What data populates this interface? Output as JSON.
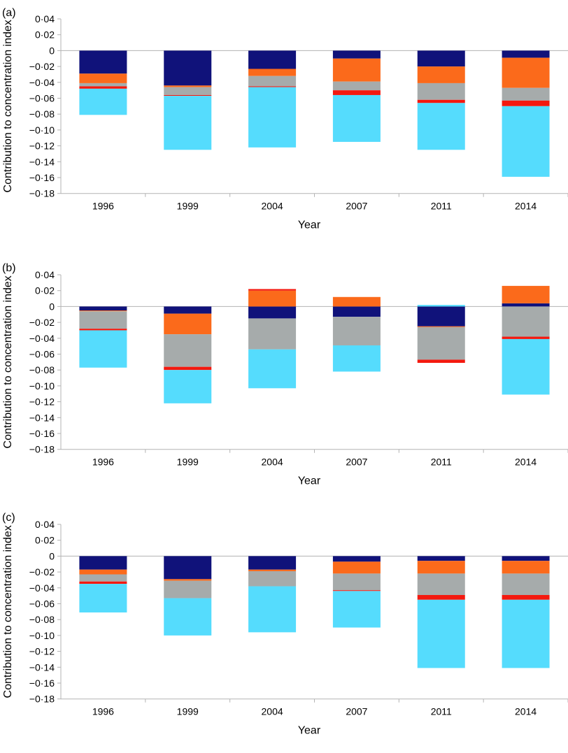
{
  "chart_data": [
    {
      "type": "bar",
      "stacked": true,
      "panel_label": "(a)",
      "xlabel": "Year",
      "ylabel": "Contribution to concentration index",
      "ylim": [
        -0.18,
        0.04
      ],
      "y_ticks": [
        0.04,
        0.02,
        0,
        -0.02,
        -0.04,
        -0.06,
        -0.08,
        -0.1,
        -0.12,
        -0.14,
        -0.16,
        -0.18
      ],
      "y_tick_labels": [
        "0·04",
        "0·02",
        "0",
        "−0·02",
        "−0·04",
        "−0·06",
        "−0·08",
        "−0·10",
        "−0·12",
        "−0·14",
        "−0·16",
        "−0·18"
      ],
      "categories": [
        "1996",
        "1999",
        "2004",
        "2007",
        "2011",
        "2014"
      ],
      "series": [
        {
          "color": "#10127a",
          "values": [
            -0.029,
            -0.044,
            -0.023,
            -0.01,
            -0.02,
            -0.009
          ]
        },
        {
          "color": "#fb6a1b",
          "values": [
            -0.012,
            -0.002,
            -0.009,
            -0.029,
            -0.021,
            -0.038
          ]
        },
        {
          "color": "#a6abab",
          "values": [
            -0.004,
            -0.01,
            -0.013,
            -0.011,
            -0.021,
            -0.016
          ]
        },
        {
          "color": "#f4190f",
          "values": [
            -0.003,
            -0.001,
            -0.001,
            -0.006,
            -0.004,
            -0.007
          ]
        },
        {
          "color": "#55dcfd",
          "values": [
            -0.033,
            -0.068,
            -0.076,
            -0.059,
            -0.059,
            -0.089
          ]
        }
      ]
    },
    {
      "type": "bar",
      "stacked": true,
      "panel_label": "(b)",
      "xlabel": "Year",
      "ylabel": "Contribution to concentration index",
      "ylim": [
        -0.18,
        0.04
      ],
      "y_ticks": [
        0.04,
        0.02,
        0,
        -0.02,
        -0.04,
        -0.06,
        -0.08,
        -0.1,
        -0.12,
        -0.14,
        -0.16,
        -0.18
      ],
      "y_tick_labels": [
        "0·04",
        "0·02",
        "0",
        "−0·02",
        "−0·04",
        "−0·06",
        "−0·08",
        "−0·10",
        "−0·12",
        "−0·14",
        "−0·16",
        "−0·18"
      ],
      "categories": [
        "1996",
        "1999",
        "2004",
        "2007",
        "2011",
        "2014"
      ],
      "series": [
        {
          "color": "#10127a",
          "values": [
            -0.005,
            -0.009,
            -0.015,
            -0.013,
            -0.025,
            0.004
          ]
        },
        {
          "color": "#fb6a1b",
          "values": [
            -0.001,
            -0.026,
            0.02,
            0.012,
            -0.001,
            0.022
          ]
        },
        {
          "color": "#a6abab",
          "values": [
            -0.022,
            -0.041,
            -0.039,
            -0.036,
            -0.041,
            -0.038
          ]
        },
        {
          "color": "#f4190f",
          "values": [
            -0.002,
            -0.004,
            0.002,
            0,
            -0.004,
            -0.003
          ]
        },
        {
          "color": "#55dcfd",
          "values": [
            -0.047,
            -0.042,
            -0.049,
            -0.033,
            0.002,
            -0.07
          ]
        }
      ]
    },
    {
      "type": "bar",
      "stacked": true,
      "panel_label": "(c)",
      "xlabel": "Year",
      "ylabel": "Contribution to concentration index",
      "ylim": [
        -0.18,
        0.04
      ],
      "y_ticks": [
        0.04,
        0.02,
        0,
        -0.02,
        -0.04,
        -0.06,
        -0.08,
        -0.1,
        -0.12,
        -0.14,
        -0.16,
        -0.18
      ],
      "y_tick_labels": [
        "0·04",
        "0·02",
        "0",
        "−0·02",
        "−0·04",
        "−0·06",
        "−0·08",
        "−0·10",
        "−0·12",
        "−0·14",
        "−0·16",
        "−0·18"
      ],
      "categories": [
        "1996",
        "1999",
        "2004",
        "2007",
        "2011",
        "2014"
      ],
      "series": [
        {
          "color": "#10127a",
          "values": [
            -0.017,
            -0.029,
            -0.017,
            -0.007,
            -0.006,
            -0.006
          ]
        },
        {
          "color": "#fb6a1b",
          "values": [
            -0.006,
            -0.002,
            -0.002,
            -0.015,
            -0.016,
            -0.016
          ]
        },
        {
          "color": "#a6abab",
          "values": [
            -0.009,
            -0.022,
            -0.019,
            -0.021,
            -0.027,
            -0.027
          ]
        },
        {
          "color": "#f4190f",
          "values": [
            -0.003,
            0,
            0,
            -0.001,
            -0.006,
            -0.006
          ]
        },
        {
          "color": "#55dcfd",
          "values": [
            -0.036,
            -0.047,
            -0.058,
            -0.046,
            -0.086,
            -0.086
          ]
        }
      ]
    }
  ]
}
